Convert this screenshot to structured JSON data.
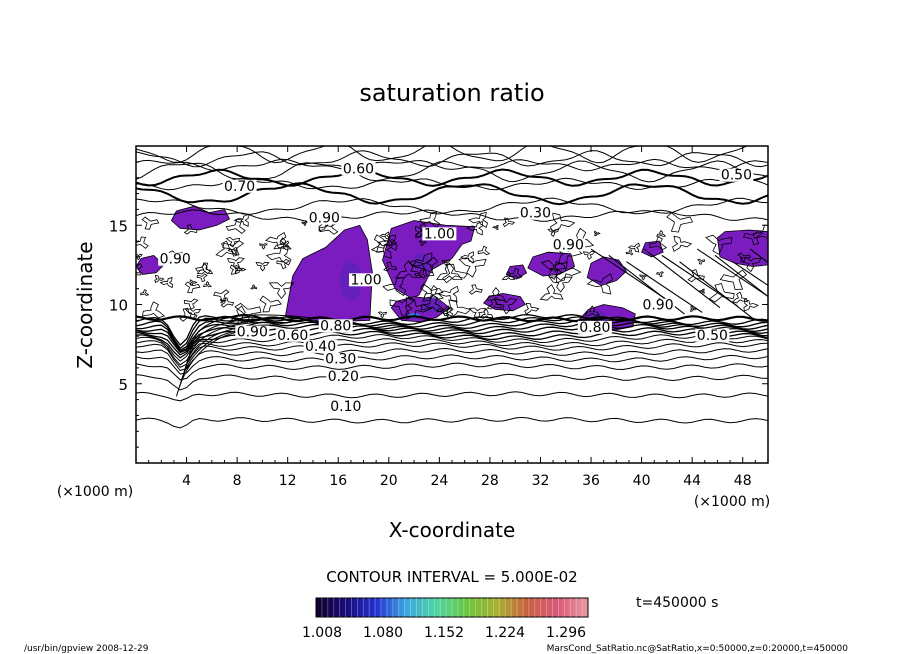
{
  "chart_data": {
    "type": "contour",
    "title": "saturation ratio",
    "xlabel": "X-coordinate",
    "ylabel": "Z-coordinate",
    "x_unit": "(×1000 m)",
    "y_unit": "(×1000 m)",
    "xlim": [
      0,
      50
    ],
    "ylim": [
      0,
      20
    ],
    "x_ticks": [
      4,
      8,
      12,
      16,
      20,
      24,
      28,
      32,
      36,
      40,
      44,
      48
    ],
    "y_ticks": [
      5,
      10,
      15
    ],
    "contour_interval_text": "CONTOUR INTERVAL = 5.000E-02",
    "time_text": "t=450000 s",
    "colorbar_labels": [
      "1.008",
      "1.080",
      "1.152",
      "1.224",
      "1.296"
    ],
    "colorbar_colors": [
      "#100028",
      "#1a0a7a",
      "#2432d0",
      "#3ca8e0",
      "#4ed6a0",
      "#6cc640",
      "#a8b030",
      "#c86040",
      "#d85a78",
      "#e89aa0"
    ],
    "fill_color": "#7a1cc0",
    "contour_labels": [
      {
        "x": 16.6,
        "y": 3.4,
        "text": "0.10"
      },
      {
        "x": 16.4,
        "y": 5.3,
        "text": "0.20"
      },
      {
        "x": 16.2,
        "y": 6.4,
        "text": "0.30"
      },
      {
        "x": 14.6,
        "y": 7.2,
        "text": "0.40"
      },
      {
        "x": 12.4,
        "y": 7.9,
        "text": "0.60"
      },
      {
        "x": 9.2,
        "y": 8.1,
        "text": "0.90"
      },
      {
        "x": 15.8,
        "y": 8.5,
        "text": "0.80"
      },
      {
        "x": 17.6,
        "y": 18.4,
        "text": "0.60"
      },
      {
        "x": 8.2,
        "y": 17.3,
        "text": "0.70"
      },
      {
        "x": 14.9,
        "y": 15.3,
        "text": "0.90"
      },
      {
        "x": 31.6,
        "y": 15.6,
        "text": "0.30"
      },
      {
        "x": 47.5,
        "y": 18.0,
        "text": "0.50"
      },
      {
        "x": 3.1,
        "y": 12.7,
        "text": "0.90"
      },
      {
        "x": 18.2,
        "y": 11.4,
        "text": "1.00"
      },
      {
        "x": 24.0,
        "y": 14.3,
        "text": "1.00"
      },
      {
        "x": 34.2,
        "y": 13.6,
        "text": "0.90"
      },
      {
        "x": 36.3,
        "y": 8.4,
        "text": "0.80"
      },
      {
        "x": 41.3,
        "y": 9.8,
        "text": "0.90"
      },
      {
        "x": 45.6,
        "y": 7.9,
        "text": "0.50"
      }
    ]
  },
  "footer": {
    "left": "/usr/bin/gpview   2008-12-29",
    "right": "MarsCond_SatRatio.nc@SatRatio,x=0:50000,z=0:20000,t=450000"
  },
  "colors": {
    "background": "#ffffff",
    "ink": "#000000",
    "fill": "#7a1cc0"
  }
}
